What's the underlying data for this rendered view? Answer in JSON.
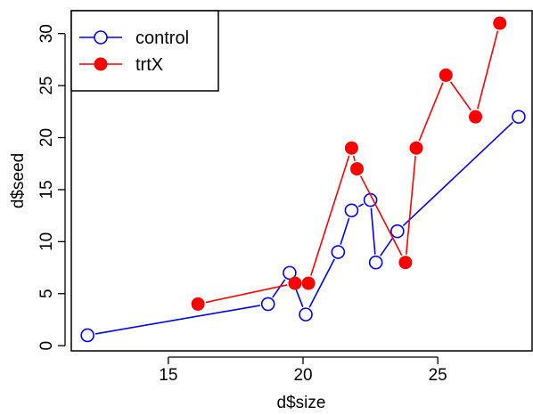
{
  "chart_data": {
    "type": "line",
    "xlabel": "d$size",
    "ylabel": "d$seed",
    "xlim": [
      11.4,
      28.5
    ],
    "ylim": [
      -0.5,
      32.2
    ],
    "xticks": [
      15,
      20,
      25
    ],
    "yticks": [
      0,
      5,
      10,
      15,
      20,
      25,
      30
    ],
    "x_tick_labels": [
      "15",
      "20",
      "25"
    ],
    "y_tick_labels": [
      "0",
      "5",
      "10",
      "15",
      "20",
      "25",
      "30"
    ],
    "legend_position": "top-left",
    "series": [
      {
        "name": "control",
        "color": "#0000ff",
        "marker": "open-circle",
        "points": [
          {
            "x": 12.0,
            "y": 1
          },
          {
            "x": 18.7,
            "y": 4
          },
          {
            "x": 19.5,
            "y": 7
          },
          {
            "x": 20.1,
            "y": 3
          },
          {
            "x": 21.3,
            "y": 9
          },
          {
            "x": 21.8,
            "y": 13
          },
          {
            "x": 22.5,
            "y": 14
          },
          {
            "x": 22.7,
            "y": 8
          },
          {
            "x": 23.5,
            "y": 11
          },
          {
            "x": 28.0,
            "y": 22
          }
        ]
      },
      {
        "name": "trtX",
        "color": "#ff0000",
        "marker": "filled-circle",
        "points": [
          {
            "x": 16.1,
            "y": 4
          },
          {
            "x": 19.7,
            "y": 6
          },
          {
            "x": 20.2,
            "y": 6
          },
          {
            "x": 21.8,
            "y": 19
          },
          {
            "x": 22.0,
            "y": 17
          },
          {
            "x": 23.8,
            "y": 8
          },
          {
            "x": 24.2,
            "y": 19
          },
          {
            "x": 25.3,
            "y": 26
          },
          {
            "x": 26.4,
            "y": 22
          },
          {
            "x": 27.3,
            "y": 31
          }
        ]
      }
    ]
  }
}
